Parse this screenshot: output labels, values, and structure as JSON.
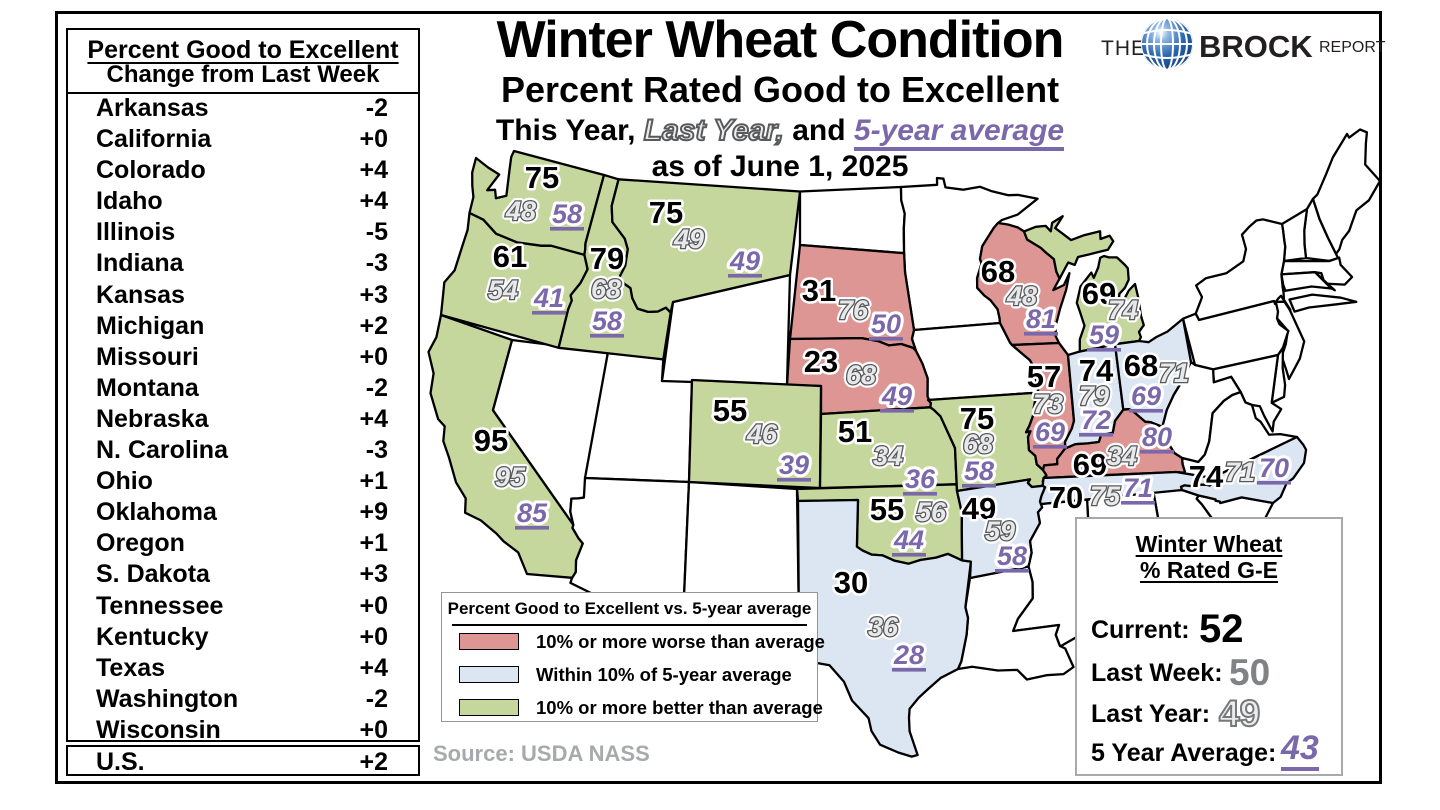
{
  "title": {
    "line1": "Winter Wheat Condition",
    "line2": "Percent Rated Good to Excellent",
    "line3_this_year": "This Year,",
    "line3_last_year": "Last Year,",
    "line3_and": "and",
    "line3_five_year": "5-year average",
    "line4": "as of June 1, 2025"
  },
  "logo": {
    "the": "THE",
    "brock": "BROCK",
    "report": "REPORT"
  },
  "change_table": {
    "header1": "Percent Good to Excellent",
    "header2": "Change from Last Week",
    "rows": [
      {
        "state": "Arkansas",
        "change": "-2"
      },
      {
        "state": "California",
        "change": "+0"
      },
      {
        "state": "Colorado",
        "change": "+4"
      },
      {
        "state": "Idaho",
        "change": "+4"
      },
      {
        "state": "Illinois",
        "change": "-5"
      },
      {
        "state": "Indiana",
        "change": "-3"
      },
      {
        "state": "Kansas",
        "change": "+3"
      },
      {
        "state": "Michigan",
        "change": "+2"
      },
      {
        "state": "Missouri",
        "change": "+0"
      },
      {
        "state": "Montana",
        "change": "-2"
      },
      {
        "state": "Nebraska",
        "change": "+4"
      },
      {
        "state": "N. Carolina",
        "change": "-3"
      },
      {
        "state": "Ohio",
        "change": "+1"
      },
      {
        "state": "Oklahoma",
        "change": "+9"
      },
      {
        "state": "Oregon",
        "change": "+1"
      },
      {
        "state": "S. Dakota",
        "change": "+3"
      },
      {
        "state": "Tennessee",
        "change": "+0"
      },
      {
        "state": "Kentucky",
        "change": "+0"
      },
      {
        "state": "Texas",
        "change": "+4"
      },
      {
        "state": "Washington",
        "change": "-2"
      },
      {
        "state": "Wisconsin",
        "change": "+0"
      }
    ],
    "us_row": {
      "state": "U.S.",
      "change": "+2"
    }
  },
  "legend": {
    "title": "Percent Good to Excellent vs. 5-year average",
    "items": [
      {
        "key": "worse",
        "label": "10% or more worse than average"
      },
      {
        "key": "within",
        "label": "Within 10% of 5-year average"
      },
      {
        "key": "better",
        "label": "10% or more better than average"
      }
    ]
  },
  "summary": {
    "title_line1": "Winter Wheat",
    "title_line2": "% Rated G-E",
    "current_label": "Current:",
    "current_value": "52",
    "last_week_label": "Last Week:",
    "last_week_value": "50",
    "last_year_label": "Last Year:",
    "last_year_value": "49",
    "five_year_label": "5 Year Average:",
    "five_year_value": "43"
  },
  "source": "Source: USDA NASS",
  "colors": {
    "worse": "#dd9694",
    "within": "#dbe6f2",
    "better": "#c6d79e",
    "purple": "#7b68ab",
    "gray_solid": "#808285",
    "gray_outline": "#58595b",
    "gray_fill": "#e8e9ea",
    "map_stroke": "#000000",
    "white": "#ffffff"
  },
  "chart_data": {
    "type": "choropleth_map",
    "title": "Winter Wheat Condition - Percent Rated Good to Excellent",
    "as_of": "June 1, 2025",
    "value_meaning": [
      "current (this year)",
      "last year",
      "5-year average"
    ],
    "categories": {
      "worse": "10% or more worse than average",
      "within": "Within 10% of 5-year average",
      "better": "10% or more better than average",
      "none": "not reported (white)"
    },
    "us_summary": {
      "current": 52,
      "last_week": 50,
      "last_year": 49,
      "five_year_avg": 43,
      "change_from_last_week": "+2"
    },
    "states": [
      {
        "id": "WA",
        "name": "Washington",
        "current": 75,
        "last_year": 48,
        "five_year_avg": 58,
        "category": "better"
      },
      {
        "id": "OR",
        "name": "Oregon",
        "current": 61,
        "last_year": 54,
        "five_year_avg": 41,
        "category": "better"
      },
      {
        "id": "CA",
        "name": "California",
        "current": 95,
        "last_year": 95,
        "five_year_avg": 85,
        "category": "better"
      },
      {
        "id": "ID",
        "name": "Idaho",
        "current": 79,
        "last_year": 68,
        "five_year_avg": 58,
        "category": "better"
      },
      {
        "id": "MT",
        "name": "Montana",
        "current": 75,
        "last_year": 49,
        "five_year_avg": 49,
        "category": "better"
      },
      {
        "id": "SD",
        "name": "South Dakota",
        "current": 31,
        "last_year": 76,
        "five_year_avg": 50,
        "category": "worse"
      },
      {
        "id": "NE",
        "name": "Nebraska",
        "current": 23,
        "last_year": 68,
        "five_year_avg": 49,
        "category": "worse"
      },
      {
        "id": "CO",
        "name": "Colorado",
        "current": 55,
        "last_year": 46,
        "five_year_avg": 39,
        "category": "better"
      },
      {
        "id": "KS",
        "name": "Kansas",
        "current": 51,
        "last_year": 34,
        "five_year_avg": 36,
        "category": "better"
      },
      {
        "id": "MO",
        "name": "Missouri",
        "current": 75,
        "last_year": 68,
        "five_year_avg": 58,
        "category": "better"
      },
      {
        "id": "OK",
        "name": "Oklahoma",
        "current": 55,
        "last_year": 56,
        "five_year_avg": 44,
        "category": "better"
      },
      {
        "id": "TX",
        "name": "Texas",
        "current": 30,
        "last_year": 36,
        "five_year_avg": 28,
        "category": "within"
      },
      {
        "id": "AR",
        "name": "Arkansas",
        "current": 49,
        "last_year": 59,
        "five_year_avg": 58,
        "category": "within"
      },
      {
        "id": "WI",
        "name": "Wisconsin",
        "current": 68,
        "last_year": 48,
        "five_year_avg": 81,
        "category": "worse"
      },
      {
        "id": "MI",
        "name": "Michigan",
        "current": 69,
        "last_year": 74,
        "five_year_avg": 59,
        "category": "better"
      },
      {
        "id": "IL",
        "name": "Illinois",
        "current": 57,
        "last_year": 73,
        "five_year_avg": 69,
        "category": "worse"
      },
      {
        "id": "IN",
        "name": "Indiana",
        "current": 74,
        "last_year": 79,
        "five_year_avg": 72,
        "category": "within"
      },
      {
        "id": "OH",
        "name": "Ohio",
        "current": 68,
        "last_year": 71,
        "five_year_avg": 69,
        "category": "within"
      },
      {
        "id": "KY",
        "name": "Kentucky",
        "current": 69,
        "last_year": 34,
        "five_year_avg": 80,
        "category": "worse"
      },
      {
        "id": "TN",
        "name": "Tennessee",
        "current": 70,
        "last_year": 75,
        "five_year_avg": 71,
        "category": "within"
      },
      {
        "id": "NC",
        "name": "North Carolina",
        "current": 74,
        "last_year": 71,
        "five_year_avg": 70,
        "category": "within"
      }
    ]
  }
}
